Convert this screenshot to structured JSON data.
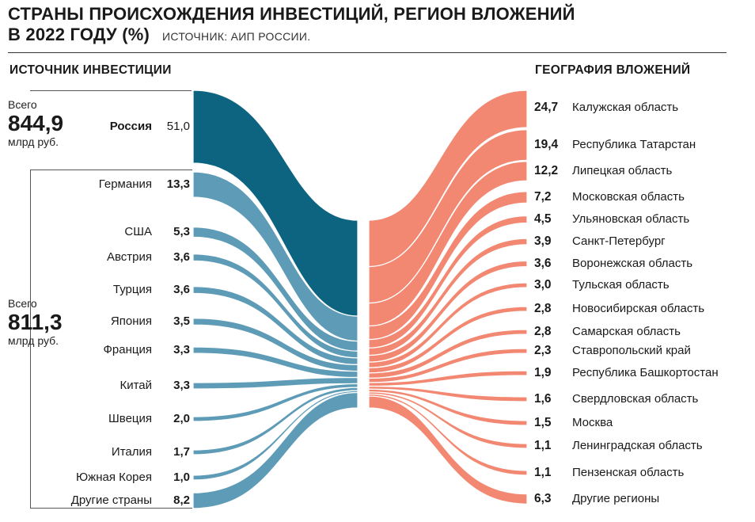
{
  "title": {
    "line1": "СТРАНЫ ПРОИСХОЖДЕНИЯ ИНВЕСТИЦИЙ, РЕГИОН ВЛОЖЕНИЙ",
    "line2": "В 2022 ГОДУ (%)",
    "source": "ИСТОЧНИК: АИП РОССИИ."
  },
  "left_header": "ИСТОЧНИК ИНВЕСТИЦИИ",
  "right_header": "ГЕОГРАФИЯ ВЛОЖЕНИЙ",
  "totals": {
    "domestic": {
      "prefix": "Всего",
      "value": "844,9",
      "unit": "млрд руб."
    },
    "foreign": {
      "prefix": "Всего",
      "value": "811,3",
      "unit": "млрд руб."
    }
  },
  "colors": {
    "russia": "#0c6480",
    "foreign": "#5e9bb6",
    "regions": "#f28872"
  },
  "chart_data": {
    "type": "sankey",
    "sources": [
      {
        "name": "Россия",
        "value": 51.0,
        "label": "51,0"
      },
      {
        "name": "Германия",
        "value": 13.3,
        "label": "13,3"
      },
      {
        "name": "США",
        "value": 5.3,
        "label": "5,3"
      },
      {
        "name": "Австрия",
        "value": 3.6,
        "label": "3,6"
      },
      {
        "name": "Турция",
        "value": 3.6,
        "label": "3,6"
      },
      {
        "name": "Япония",
        "value": 3.5,
        "label": "3,5"
      },
      {
        "name": "Франция",
        "value": 3.3,
        "label": "3,3"
      },
      {
        "name": "Китай",
        "value": 3.3,
        "label": "3,3"
      },
      {
        "name": "Швеция",
        "value": 2.0,
        "label": "2,0"
      },
      {
        "name": "Италия",
        "value": 1.7,
        "label": "1,7"
      },
      {
        "name": "Южная Корея",
        "value": 1.0,
        "label": "1,0"
      },
      {
        "name": "Другие страны",
        "value": 8.2,
        "label": "8,2"
      }
    ],
    "targets": [
      {
        "name": "Калужская область",
        "value": 24.7,
        "label": "24,7"
      },
      {
        "name": "Республика Татарстан",
        "value": 19.4,
        "label": "19,4"
      },
      {
        "name": "Липецкая область",
        "value": 12.2,
        "label": "12,2"
      },
      {
        "name": "Московская область",
        "value": 7.2,
        "label": "7,2"
      },
      {
        "name": "Ульяновская область",
        "value": 4.5,
        "label": "4,5"
      },
      {
        "name": "Санкт-Петербург",
        "value": 3.9,
        "label": "3,9"
      },
      {
        "name": "Воронежская область",
        "value": 3.6,
        "label": "3,6"
      },
      {
        "name": "Тульская область",
        "value": 3.0,
        "label": "3,0"
      },
      {
        "name": "Новосибирская область",
        "value": 2.8,
        "label": "2,8"
      },
      {
        "name": "Самарская область",
        "value": 2.8,
        "label": "2,8"
      },
      {
        "name": "Ставропольский край",
        "value": 2.3,
        "label": "2,3"
      },
      {
        "name": "Республика Башкортостан",
        "value": 1.9,
        "label": "1,9"
      },
      {
        "name": "Свердловская область",
        "value": 1.6,
        "label": "1,6"
      },
      {
        "name": "Москва",
        "value": 1.5,
        "label": "1,5"
      },
      {
        "name": "Ленинградская область",
        "value": 1.1,
        "label": "1,1"
      },
      {
        "name": "Пензенская область",
        "value": 1.1,
        "label": "1,1"
      },
      {
        "name": "Другие регионы",
        "value": 6.3,
        "label": "6,3"
      }
    ]
  }
}
